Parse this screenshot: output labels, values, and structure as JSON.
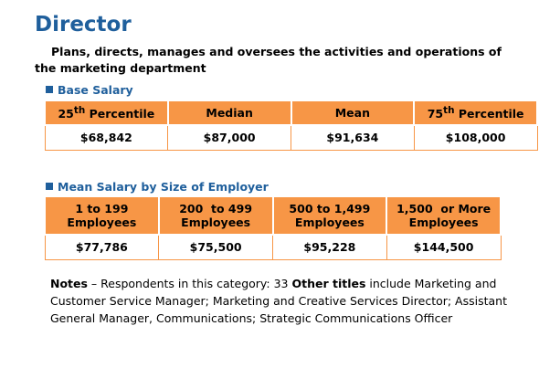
{
  "header": {
    "title": "Director",
    "description": "Plans, directs, manages and oversees the activities and operations of the marketing department"
  },
  "base_salary": {
    "heading": "Base Salary",
    "headers": [
      {
        "text": "25",
        "sup": "th",
        "after": " Percentile"
      },
      {
        "text": "Median"
      },
      {
        "text": "Mean"
      },
      {
        "text": "75",
        "sup": "th",
        "after": " Percentile"
      }
    ],
    "values": [
      "$68,842",
      "$87,000",
      "$91,634",
      "$108,000"
    ]
  },
  "by_size": {
    "heading": "Mean Salary by Size of Employer",
    "headers": [
      [
        "1 to 199",
        "Employees"
      ],
      [
        "200  to 499",
        "Employees"
      ],
      [
        "500 to 1,499",
        "Employees"
      ],
      [
        "1,500  or More",
        "Employees"
      ]
    ],
    "values": [
      "$77,786",
      "$75,500",
      "$95,228",
      "$144,500"
    ]
  },
  "notes": {
    "label": "Notes",
    "text": " – Respondents in this category: 33  ",
    "label2": "Other titles",
    "text2": " include Marketing and Customer Service Manager; Marketing and Creative Services Director; Assistant General Manager, Communications; Strategic Communications Officer"
  }
}
